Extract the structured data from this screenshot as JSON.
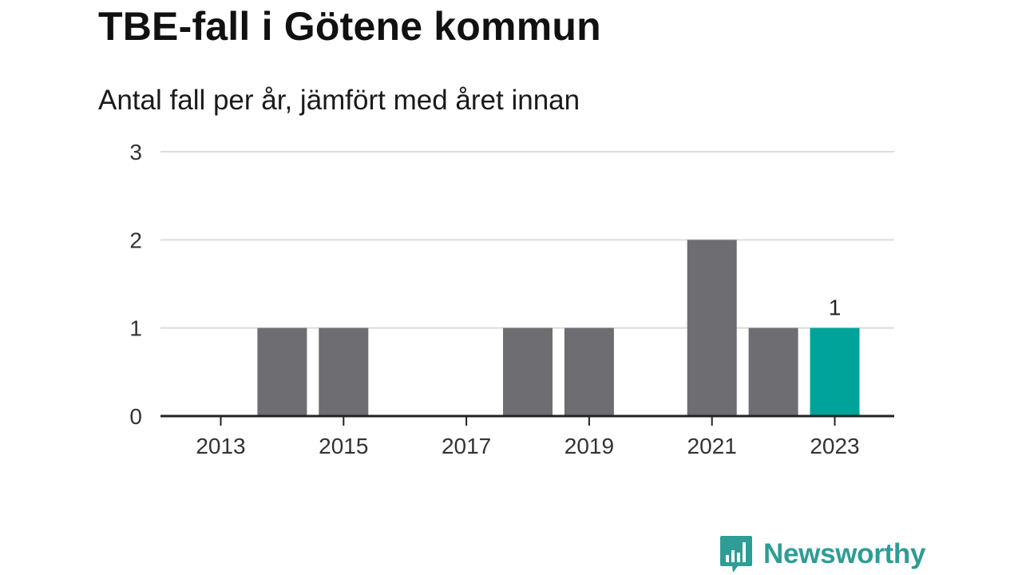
{
  "title": "TBE-fall i Götene kommun",
  "subtitle": "Antal fall per år, jämfört med året innan",
  "brand": "Newsworthy",
  "colors": {
    "bar": "#6e6d72",
    "highlight": "#00a39a",
    "grid": "#dcdcdc",
    "axis": "#222222",
    "brand": "#2e9d95"
  },
  "chart_data": {
    "type": "bar",
    "categories": [
      "2013",
      "2014",
      "2015",
      "2016",
      "2017",
      "2018",
      "2019",
      "2020",
      "2021",
      "2022",
      "2023"
    ],
    "values": [
      0,
      1,
      1,
      0,
      0,
      1,
      1,
      0,
      2,
      1,
      1
    ],
    "highlight_category": "2023",
    "data_labels": [
      {
        "category": "2023",
        "text": "1"
      }
    ],
    "x_tick_labels": [
      "2013",
      "2015",
      "2017",
      "2019",
      "2021",
      "2023"
    ],
    "y_ticks": [
      0,
      1,
      2,
      3
    ],
    "ylim": [
      0,
      3
    ],
    "xlabel": "",
    "ylabel": "",
    "grid": true,
    "legend": "none"
  }
}
